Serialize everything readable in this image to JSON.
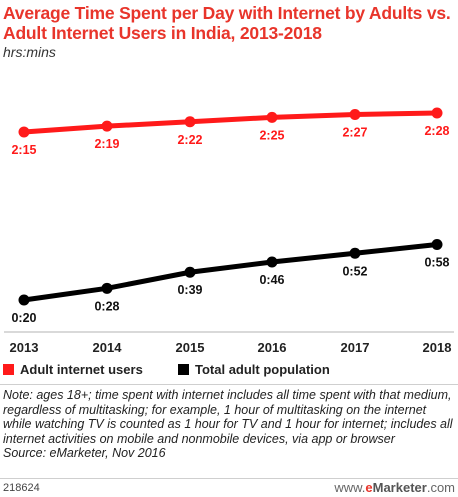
{
  "title": "Average Time Spent per Day with Internet by Adults vs. Adult Internet Users in India, 2013-2018",
  "subtitle": "hrs:mins",
  "chart_data": {
    "type": "line",
    "title": "Average Time Spent per Day with Internet by Adults vs. Adult Internet Users in India, 2013-2018",
    "subtitle": "hrs:mins",
    "categories": [
      "2013",
      "2014",
      "2015",
      "2016",
      "2017",
      "2018"
    ],
    "series": [
      {
        "name": "Adult internet users",
        "color": "#ff1a1a",
        "values": [
          135,
          139,
          142,
          145,
          147,
          148
        ],
        "labels": [
          "2:15",
          "2:19",
          "2:22",
          "2:25",
          "2:27",
          "2:28"
        ]
      },
      {
        "name": "Total adult population",
        "color": "#000000",
        "values": [
          20,
          28,
          39,
          46,
          52,
          58
        ],
        "labels": [
          "0:20",
          "0:28",
          "0:39",
          "0:46",
          "0:52",
          "0:58"
        ]
      }
    ],
    "ylim": [
      20,
      148
    ],
    "grid": false,
    "legend_position": "bottom-left"
  },
  "note": "Note: ages 18+; time spent with internet includes all time spent with that medium, regardless of multitasking; for example, 1 hour of multitasking on the internet while watching TV is counted as 1 hour for TV and 1 hour for internet; includes all internet activities on mobile and nonmobile devices, via app or browser",
  "source": "Source: eMarketer, Nov 2016",
  "footer_id": "218624",
  "logo": {
    "e": "e",
    "brand": "Marketer",
    "suffix": ".com"
  }
}
